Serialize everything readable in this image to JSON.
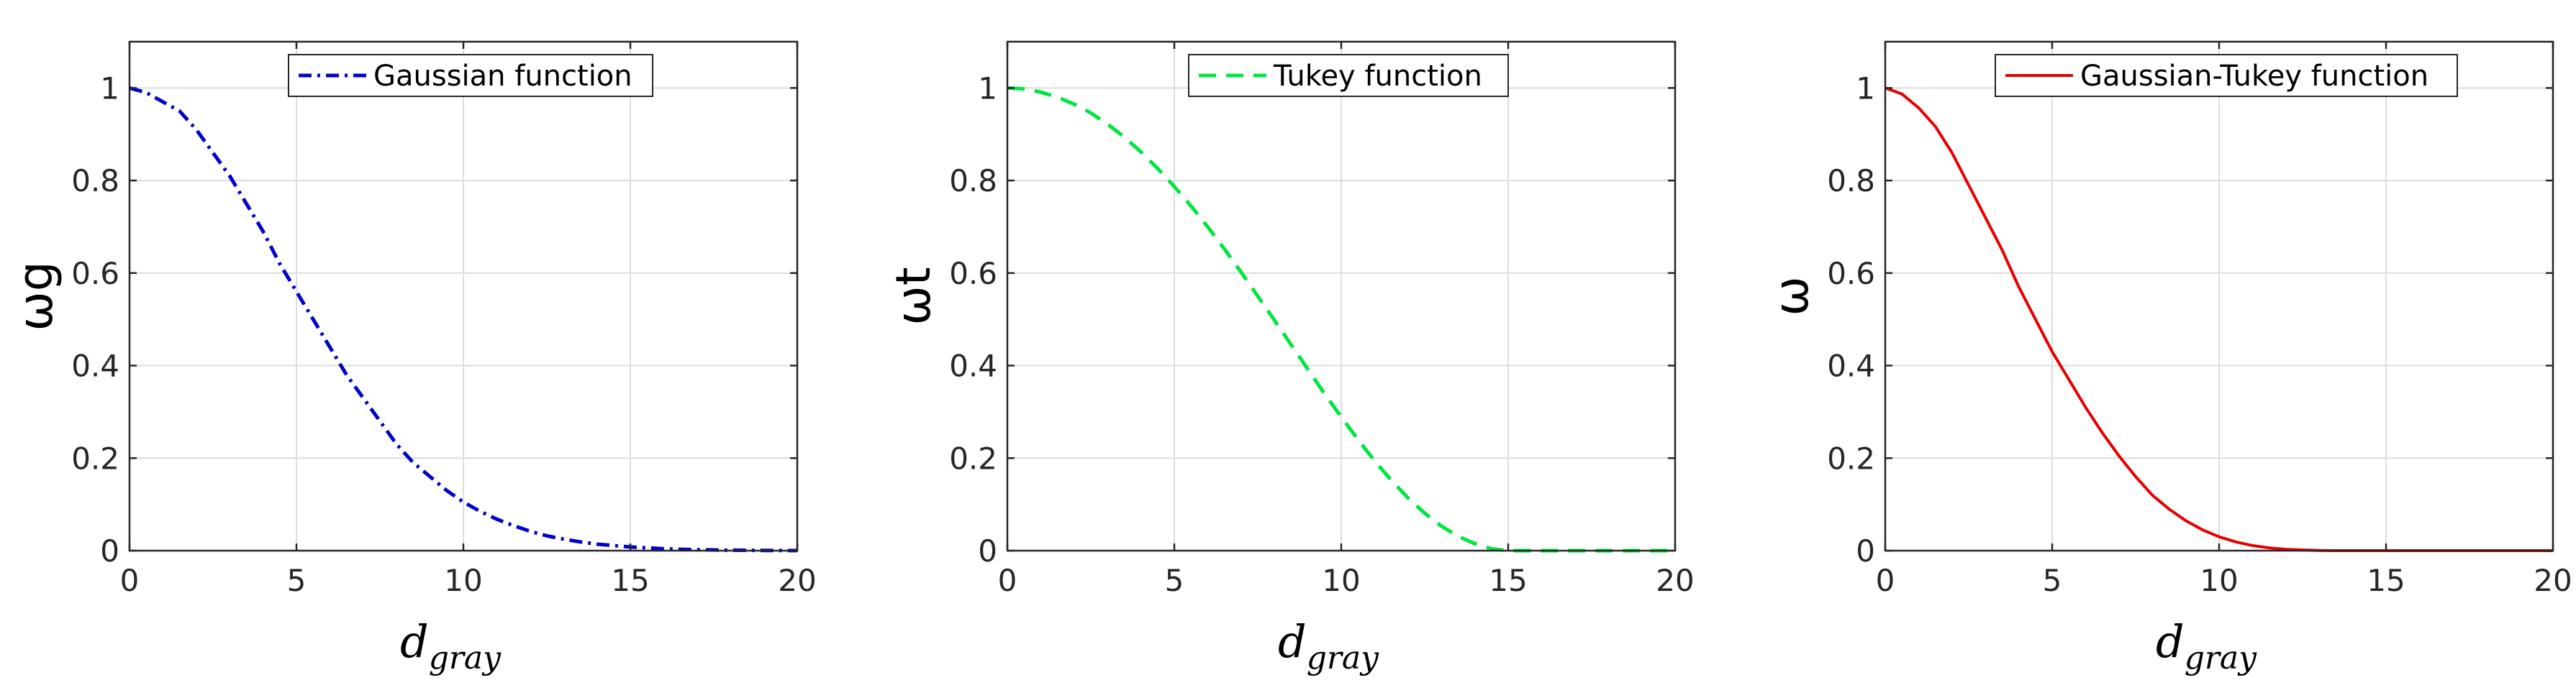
{
  "chart_data": [
    {
      "type": "line",
      "xlabel": {
        "base": "d",
        "subscript": "gray"
      },
      "ylabel": "ωg",
      "xlim": [
        0,
        20
      ],
      "ylim": [
        0,
        1.1
      ],
      "xticks": [
        "0",
        "5",
        "10",
        "15",
        "20"
      ],
      "yticks": [
        "0",
        "0.2",
        "0.4",
        "0.6",
        "0.8",
        "1"
      ],
      "grid": true,
      "legend": {
        "position": "top-center"
      },
      "series": [
        {
          "name": "Gaussian function",
          "color": "#0000c8",
          "style": "dash-dot",
          "x": [
            0,
            0.5,
            1,
            1.5,
            2,
            2.5,
            3,
            3.5,
            4,
            4.5,
            5,
            5.5,
            6,
            6.5,
            7,
            7.5,
            8,
            8.5,
            9,
            9.5,
            10,
            10.5,
            11,
            11.5,
            12,
            12.5,
            13,
            13.5,
            14,
            14.5,
            15,
            15.5,
            16,
            16.5,
            17,
            17.5,
            18,
            18.5,
            19,
            19.5,
            20
          ],
          "y": [
            1,
            0.99,
            0.97,
            0.95,
            0.91,
            0.86,
            0.81,
            0.75,
            0.69,
            0.62,
            0.56,
            0.5,
            0.44,
            0.38,
            0.33,
            0.28,
            0.23,
            0.19,
            0.16,
            0.13,
            0.105,
            0.085,
            0.068,
            0.054,
            0.042,
            0.032,
            0.025,
            0.019,
            0.014,
            0.011,
            0.008,
            0.006,
            0.004,
            0.003,
            0.002,
            0.0015,
            0.001,
            0.0007,
            0.0005,
            0.0003,
            0.0002
          ]
        }
      ]
    },
    {
      "type": "line",
      "xlabel": {
        "base": "d",
        "subscript": "gray"
      },
      "ylabel": "ωt",
      "xlim": [
        0,
        20
      ],
      "ylim": [
        0,
        1.1
      ],
      "xticks": [
        "0",
        "5",
        "10",
        "15",
        "20"
      ],
      "yticks": [
        "0",
        "0.2",
        "0.4",
        "0.6",
        "0.8",
        "1"
      ],
      "grid": true,
      "legend": {
        "position": "top-center"
      },
      "series": [
        {
          "name": "Tukey function",
          "color": "#00e640",
          "style": "dashed",
          "x": [
            0,
            0.5,
            1,
            1.5,
            2,
            2.5,
            3,
            3.5,
            4,
            4.5,
            5,
            5.5,
            6,
            6.5,
            7,
            7.5,
            8,
            8.5,
            9,
            9.5,
            10,
            10.5,
            11,
            11.5,
            12,
            12.5,
            13,
            13.5,
            14,
            14.5,
            15,
            15.5,
            16,
            16.5,
            17,
            17.5,
            18,
            18.5,
            19,
            19.5,
            20
          ],
          "y": [
            1,
            0.998,
            0.991,
            0.98,
            0.965,
            0.946,
            0.922,
            0.894,
            0.862,
            0.826,
            0.787,
            0.745,
            0.7,
            0.652,
            0.602,
            0.55,
            0.498,
            0.445,
            0.392,
            0.339,
            0.289,
            0.24,
            0.194,
            0.152,
            0.114,
            0.081,
            0.053,
            0.031,
            0.015,
            0.004,
            0,
            0,
            0,
            0,
            0,
            0,
            0,
            0,
            0,
            0,
            0
          ]
        }
      ]
    },
    {
      "type": "line",
      "xlabel": {
        "base": "d",
        "subscript": "gray"
      },
      "ylabel": "ω",
      "xlim": [
        0,
        20
      ],
      "ylim": [
        0,
        1.1
      ],
      "xticks": [
        "0",
        "5",
        "10",
        "15",
        "20"
      ],
      "yticks": [
        "0",
        "0.2",
        "0.4",
        "0.6",
        "0.8",
        "1"
      ],
      "grid": true,
      "legend": {
        "position": "top-center"
      },
      "series": [
        {
          "name": "Gaussian-Tukey function",
          "color": "#e60000",
          "style": "solid",
          "x": [
            0,
            0.5,
            1,
            1.5,
            2,
            2.5,
            3,
            3.5,
            4,
            4.5,
            5,
            5.5,
            6,
            6.5,
            7,
            7.5,
            8,
            8.5,
            9,
            9.5,
            10,
            10.5,
            11,
            11.5,
            12,
            12.5,
            13,
            13.5,
            14,
            14.5,
            15,
            15.5,
            16,
            16.5,
            17,
            17.5,
            18,
            18.5,
            19,
            19.5,
            20
          ],
          "y": [
            1,
            0.987,
            0.957,
            0.917,
            0.86,
            0.79,
            0.72,
            0.65,
            0.57,
            0.5,
            0.43,
            0.37,
            0.31,
            0.255,
            0.205,
            0.16,
            0.12,
            0.09,
            0.065,
            0.045,
            0.03,
            0.019,
            0.011,
            0.006,
            0.003,
            0.0015,
            0.0005,
            0,
            0,
            0,
            0,
            0,
            0,
            0,
            0,
            0,
            0,
            0,
            0,
            0,
            0
          ]
        }
      ]
    }
  ]
}
